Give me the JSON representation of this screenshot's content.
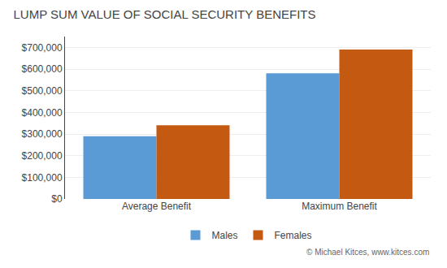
{
  "chart_data": {
    "type": "bar",
    "title": "LUMP SUM VALUE OF SOCIAL SECURITY BENEFITS",
    "categories": [
      "Average Benefit",
      "Maximum Benefit"
    ],
    "series": [
      {
        "name": "Males",
        "color": "#5B9BD5",
        "values": [
          290000,
          580000
        ]
      },
      {
        "name": "Females",
        "color": "#C45911",
        "values": [
          340000,
          690000
        ]
      }
    ],
    "ylim": [
      0,
      750000
    ],
    "yticks": [
      {
        "value": 0,
        "label": "$0"
      },
      {
        "value": 100000,
        "label": "$100,000"
      },
      {
        "value": 200000,
        "label": "$200,000"
      },
      {
        "value": 300000,
        "label": "$300,000"
      },
      {
        "value": 400000,
        "label": "$400,000"
      },
      {
        "value": 500000,
        "label": "$500,000"
      },
      {
        "value": 600000,
        "label": "$600,000"
      },
      {
        "value": 700000,
        "label": "$700,000"
      }
    ],
    "grid": true,
    "legend": "bottom",
    "annotations": [
      "© Michael Kitces, www.kitces.com"
    ]
  }
}
